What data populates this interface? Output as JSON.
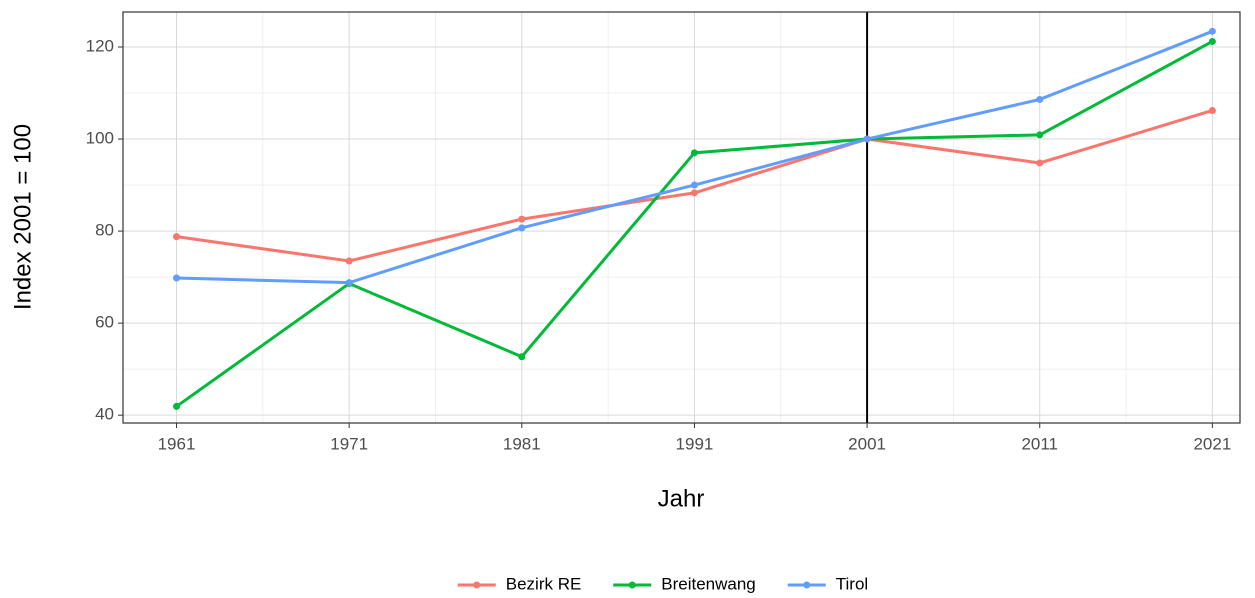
{
  "chart_data": {
    "type": "line",
    "x_label": "Jahr",
    "y_label": "Index 2001 = 100",
    "x": [
      1961,
      1971,
      1981,
      1991,
      2001,
      2011,
      2021
    ],
    "series": [
      {
        "name": "Bezirk RE",
        "color": "#F8766D",
        "values": [
          78.8,
          73.5,
          82.6,
          88.3,
          100,
          94.8,
          106.2
        ]
      },
      {
        "name": "Breitenwang",
        "color": "#00BA38",
        "values": [
          41.9,
          68.6,
          52.7,
          97.0,
          100,
          100.9,
          121.2
        ]
      },
      {
        "name": "Tirol",
        "color": "#619CFF",
        "values": [
          69.8,
          68.8,
          80.7,
          90.0,
          100,
          108.6,
          123.4
        ]
      }
    ],
    "xlim": [
      1957.9,
      2022.6
    ],
    "ylim": [
      38.3,
      127.6
    ],
    "xticks": [
      1961,
      1971,
      1981,
      1991,
      2001,
      2011,
      2021
    ],
    "yticks": [
      40,
      60,
      80,
      100,
      120
    ],
    "xticks_minor": [
      1966,
      1976,
      1986,
      1996,
      2006,
      2016
    ],
    "yticks_minor": [
      50,
      70,
      90,
      110
    ],
    "vline": 2001,
    "grid": true,
    "legend": "bottom"
  }
}
